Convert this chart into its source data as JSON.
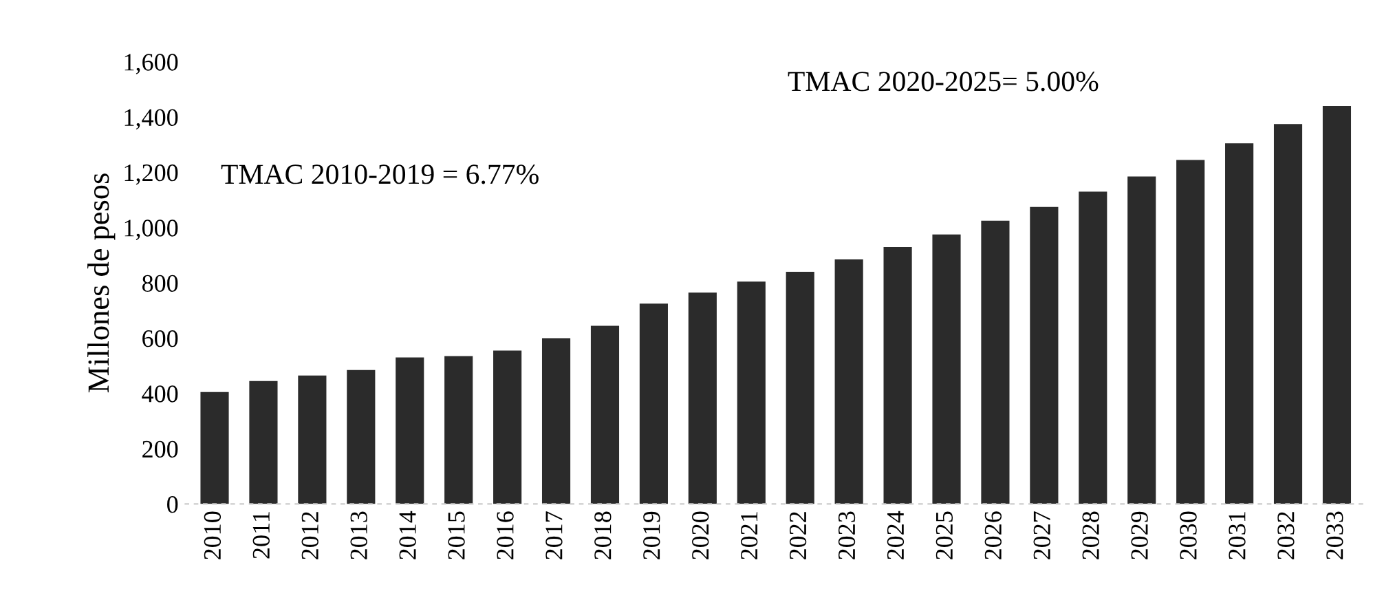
{
  "chart_data": {
    "type": "bar",
    "ylabel": "Millones de pesos",
    "categories": [
      "2010",
      "2011",
      "2012",
      "2013",
      "2014",
      "2015",
      "2016",
      "2017",
      "2018",
      "2019",
      "2020",
      "2021",
      "2022",
      "2023",
      "2024",
      "2025",
      "2026",
      "2027",
      "2028",
      "2029",
      "2030",
      "2031",
      "2032",
      "2033"
    ],
    "values": [
      405,
      445,
      465,
      485,
      530,
      535,
      555,
      600,
      645,
      725,
      765,
      805,
      840,
      885,
      930,
      975,
      1025,
      1075,
      1130,
      1185,
      1245,
      1305,
      1375,
      1440
    ],
    "color": "#2b2b2b",
    "ylim": [
      0,
      1600
    ],
    "yticks": [
      {
        "value": 0,
        "label": "0"
      },
      {
        "value": 200,
        "label": "200"
      },
      {
        "value": 400,
        "label": "400"
      },
      {
        "value": 600,
        "label": "600"
      },
      {
        "value": 800,
        "label": "800"
      },
      {
        "value": 1000,
        "label": "1,000"
      },
      {
        "value": 1200,
        "label": "1,200"
      },
      {
        "value": 1400,
        "label": "1,400"
      },
      {
        "value": 1600,
        "label": "1,600"
      }
    ],
    "grid": false,
    "annotations": [
      "TMAC 2010-2019 = 6.77%",
      "TMAC 2020-2025= 5.00%"
    ]
  }
}
